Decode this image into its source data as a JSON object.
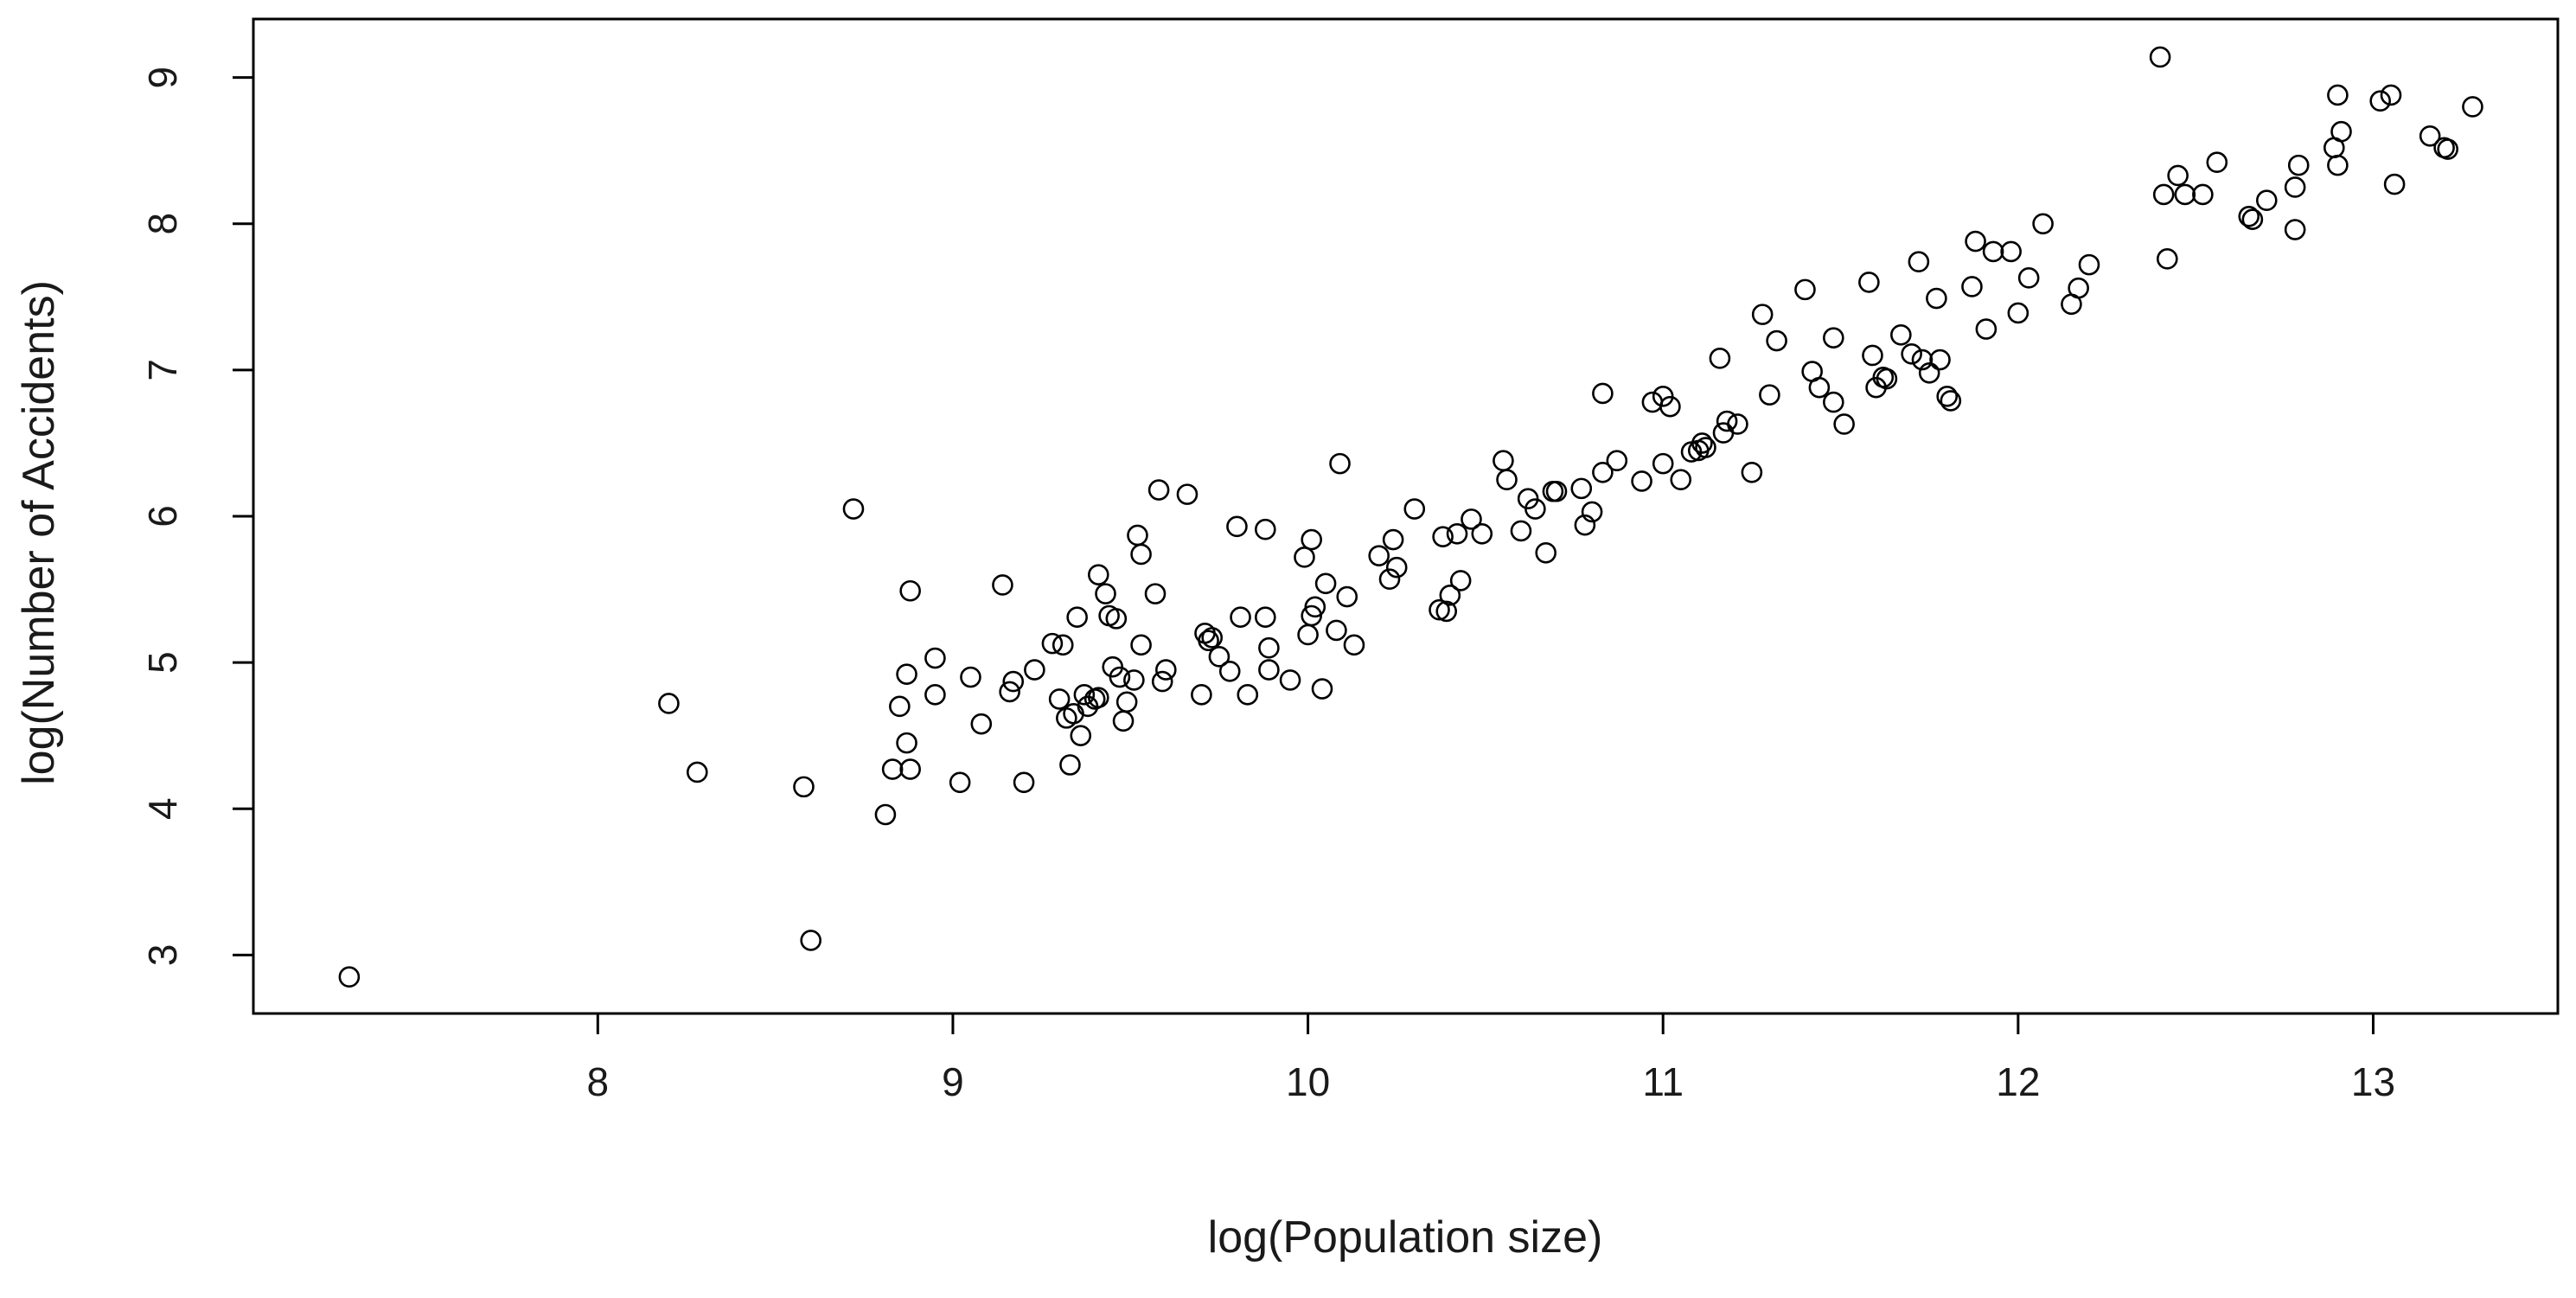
{
  "chart_data": {
    "type": "scatter",
    "title": "",
    "xlabel": "log(Population size)",
    "ylabel": "log(Number of Accidents)",
    "xlim": [
      7.03,
      13.52
    ],
    "ylim": [
      2.6,
      9.4
    ],
    "x_ticks": [
      8,
      9,
      10,
      11,
      12,
      13
    ],
    "y_ticks": [
      3,
      4,
      5,
      6,
      7,
      8,
      9
    ],
    "grid": false,
    "legend": "none",
    "marker": "open-circle",
    "marker_color": "#000000",
    "points": [
      [
        7.3,
        2.85
      ],
      [
        8.2,
        4.72
      ],
      [
        8.28,
        4.25
      ],
      [
        8.58,
        4.15
      ],
      [
        8.6,
        3.1
      ],
      [
        8.72,
        6.05
      ],
      [
        8.81,
        3.96
      ],
      [
        8.83,
        4.27
      ],
      [
        8.85,
        4.7
      ],
      [
        8.87,
        4.45
      ],
      [
        8.87,
        4.92
      ],
      [
        8.88,
        5.49
      ],
      [
        8.88,
        4.27
      ],
      [
        8.95,
        4.78
      ],
      [
        8.95,
        5.03
      ],
      [
        9.02,
        4.18
      ],
      [
        9.05,
        4.9
      ],
      [
        9.08,
        4.58
      ],
      [
        9.14,
        5.53
      ],
      [
        9.16,
        4.8
      ],
      [
        9.17,
        4.87
      ],
      [
        9.2,
        4.18
      ],
      [
        9.23,
        4.95
      ],
      [
        9.28,
        5.13
      ],
      [
        9.3,
        4.75
      ],
      [
        9.31,
        5.12
      ],
      [
        9.32,
        4.62
      ],
      [
        9.33,
        4.3
      ],
      [
        9.34,
        4.65
      ],
      [
        9.35,
        5.31
      ],
      [
        9.36,
        4.5
      ],
      [
        9.37,
        4.78
      ],
      [
        9.38,
        4.7
      ],
      [
        9.4,
        4.75
      ],
      [
        9.41,
        5.6
      ],
      [
        9.41,
        4.76
      ],
      [
        9.43,
        5.47
      ],
      [
        9.44,
        5.32
      ],
      [
        9.45,
        4.97
      ],
      [
        9.46,
        5.3
      ],
      [
        9.47,
        4.9
      ],
      [
        9.48,
        4.6
      ],
      [
        9.49,
        4.73
      ],
      [
        9.51,
        4.88
      ],
      [
        9.52,
        5.87
      ],
      [
        9.53,
        5.74
      ],
      [
        9.53,
        5.12
      ],
      [
        9.57,
        5.47
      ],
      [
        9.58,
        6.18
      ],
      [
        9.59,
        4.87
      ],
      [
        9.6,
        4.95
      ],
      [
        9.66,
        6.15
      ],
      [
        9.7,
        4.78
      ],
      [
        9.71,
        5.2
      ],
      [
        9.72,
        5.15
      ],
      [
        9.73,
        5.17
      ],
      [
        9.75,
        5.04
      ],
      [
        9.78,
        4.94
      ],
      [
        9.8,
        5.93
      ],
      [
        9.81,
        5.31
      ],
      [
        9.83,
        4.78
      ],
      [
        9.88,
        5.91
      ],
      [
        9.88,
        5.31
      ],
      [
        9.89,
        5.1
      ],
      [
        9.89,
        4.95
      ],
      [
        9.95,
        4.88
      ],
      [
        9.99,
        5.72
      ],
      [
        10.0,
        5.19
      ],
      [
        10.01,
        5.84
      ],
      [
        10.01,
        5.32
      ],
      [
        10.02,
        5.38
      ],
      [
        10.04,
        4.82
      ],
      [
        10.05,
        5.54
      ],
      [
        10.08,
        5.22
      ],
      [
        10.09,
        6.36
      ],
      [
        10.11,
        5.45
      ],
      [
        10.13,
        5.12
      ],
      [
        10.2,
        5.73
      ],
      [
        10.23,
        5.57
      ],
      [
        10.24,
        5.84
      ],
      [
        10.25,
        5.65
      ],
      [
        10.3,
        6.05
      ],
      [
        10.37,
        5.36
      ],
      [
        10.38,
        5.86
      ],
      [
        10.39,
        5.35
      ],
      [
        10.4,
        5.46
      ],
      [
        10.42,
        5.88
      ],
      [
        10.43,
        5.56
      ],
      [
        10.46,
        5.98
      ],
      [
        10.49,
        5.88
      ],
      [
        10.55,
        6.38
      ],
      [
        10.56,
        6.25
      ],
      [
        10.6,
        5.9
      ],
      [
        10.62,
        6.12
      ],
      [
        10.64,
        6.05
      ],
      [
        10.67,
        5.75
      ],
      [
        10.69,
        6.17
      ],
      [
        10.7,
        6.17
      ],
      [
        10.77,
        6.19
      ],
      [
        10.78,
        5.94
      ],
      [
        10.8,
        6.03
      ],
      [
        10.83,
        6.84
      ],
      [
        10.83,
        6.3
      ],
      [
        10.87,
        6.38
      ],
      [
        10.94,
        6.24
      ],
      [
        10.97,
        6.78
      ],
      [
        11.0,
        6.82
      ],
      [
        11.0,
        6.36
      ],
      [
        11.02,
        6.75
      ],
      [
        11.05,
        6.25
      ],
      [
        11.08,
        6.44
      ],
      [
        11.1,
        6.45
      ],
      [
        11.11,
        6.5
      ],
      [
        11.12,
        6.47
      ],
      [
        11.16,
        7.08
      ],
      [
        11.17,
        6.57
      ],
      [
        11.18,
        6.65
      ],
      [
        11.21,
        6.63
      ],
      [
        11.25,
        6.3
      ],
      [
        11.28,
        7.38
      ],
      [
        11.3,
        6.83
      ],
      [
        11.32,
        7.2
      ],
      [
        11.4,
        7.55
      ],
      [
        11.42,
        6.99
      ],
      [
        11.44,
        6.88
      ],
      [
        11.48,
        7.22
      ],
      [
        11.48,
        6.78
      ],
      [
        11.51,
        6.63
      ],
      [
        11.58,
        7.6
      ],
      [
        11.59,
        7.1
      ],
      [
        11.6,
        6.88
      ],
      [
        11.62,
        6.95
      ],
      [
        11.63,
        6.94
      ],
      [
        11.67,
        7.24
      ],
      [
        11.7,
        7.11
      ],
      [
        11.72,
        7.74
      ],
      [
        11.73,
        7.07
      ],
      [
        11.75,
        6.98
      ],
      [
        11.77,
        7.49
      ],
      [
        11.78,
        7.07
      ],
      [
        11.8,
        6.82
      ],
      [
        11.81,
        6.79
      ],
      [
        11.87,
        7.57
      ],
      [
        11.88,
        7.88
      ],
      [
        11.91,
        7.28
      ],
      [
        11.93,
        7.81
      ],
      [
        11.98,
        7.81
      ],
      [
        12.0,
        7.39
      ],
      [
        12.03,
        7.63
      ],
      [
        12.07,
        8.0
      ],
      [
        12.15,
        7.45
      ],
      [
        12.17,
        7.56
      ],
      [
        12.2,
        7.72
      ],
      [
        12.4,
        9.14
      ],
      [
        12.41,
        8.2
      ],
      [
        12.42,
        7.76
      ],
      [
        12.45,
        8.33
      ],
      [
        12.47,
        8.2
      ],
      [
        12.52,
        8.2
      ],
      [
        12.56,
        8.42
      ],
      [
        12.65,
        8.05
      ],
      [
        12.66,
        8.03
      ],
      [
        12.7,
        8.16
      ],
      [
        12.78,
        7.96
      ],
      [
        12.78,
        8.25
      ],
      [
        12.79,
        8.4
      ],
      [
        12.89,
        8.52
      ],
      [
        12.9,
        8.88
      ],
      [
        12.9,
        8.4
      ],
      [
        12.91,
        8.63
      ],
      [
        13.02,
        8.84
      ],
      [
        13.05,
        8.88
      ],
      [
        13.06,
        8.27
      ],
      [
        13.16,
        8.6
      ],
      [
        13.2,
        8.52
      ],
      [
        13.21,
        8.51
      ],
      [
        13.28,
        8.8
      ]
    ]
  }
}
